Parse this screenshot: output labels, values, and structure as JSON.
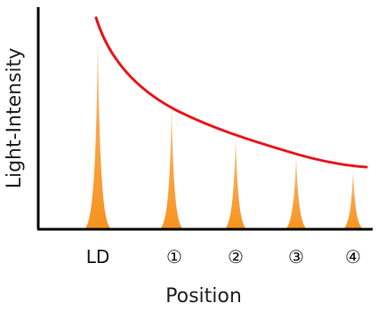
{
  "axes": {
    "y_title": "Light-Intensity",
    "x_title": "Position"
  },
  "positions": [
    {
      "label": "LD"
    },
    {
      "label": "①"
    },
    {
      "label": "②"
    },
    {
      "label": "③"
    },
    {
      "label": "④"
    }
  ],
  "colors": {
    "peak_fill": "#F7931E",
    "curve": "#E8161B",
    "axis": "#000000"
  }
}
